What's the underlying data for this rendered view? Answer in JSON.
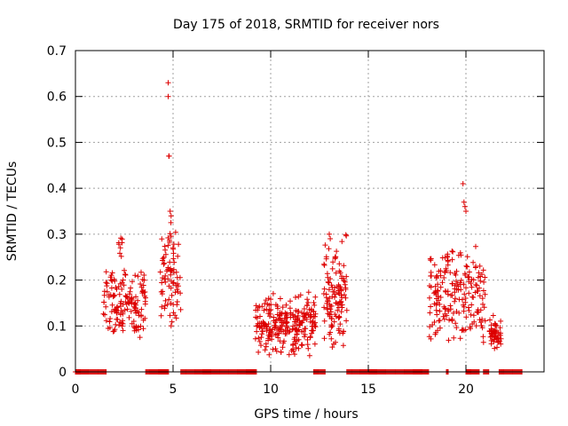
{
  "chart_data": {
    "type": "scatter",
    "title": "Day 175 of 2018, SRMTID for receiver nors",
    "xlabel": "GPS time / hours",
    "ylabel": "SRMTID / TECUs",
    "xlim": [
      0,
      24
    ],
    "ylim": [
      0,
      0.7
    ],
    "xticks": [
      0,
      5,
      10,
      15,
      20
    ],
    "yticks": [
      0,
      0.1,
      0.2,
      0.3,
      0.4,
      0.5,
      0.6,
      0.7
    ],
    "ytick_labels": [
      "0",
      "0.1",
      "0.2",
      "0.3",
      "0.4",
      "0.5",
      "0.6",
      "0.7"
    ],
    "grid": true,
    "marker": "+",
    "color": "#dd0000",
    "series": [
      {
        "name": "SRMTID",
        "clusters": [
          {
            "x_range": [
              1.4,
              3.6
            ],
            "y_range": [
              0.06,
              0.24
            ],
            "count": 150
          },
          {
            "x_range": [
              2.2,
              2.4
            ],
            "y_range": [
              0.24,
              0.31
            ],
            "count": 8
          },
          {
            "x_range": [
              4.3,
              5.4
            ],
            "y_range": [
              0.09,
              0.33
            ],
            "count": 80
          },
          {
            "x_range": [
              9.2,
              12.3
            ],
            "y_range": [
              0.03,
              0.18
            ],
            "count": 260
          },
          {
            "x_range": [
              12.7,
              13.9
            ],
            "y_range": [
              0.04,
              0.3
            ],
            "count": 120
          },
          {
            "x_range": [
              18.1,
              21.0
            ],
            "y_range": [
              0.05,
              0.29
            ],
            "count": 200
          },
          {
            "x_range": [
              21.2,
              21.8
            ],
            "y_range": [
              0.04,
              0.13
            ],
            "count": 50
          }
        ],
        "peaks": [
          {
            "x": 4.75,
            "y": 0.63
          },
          {
            "x": 4.75,
            "y": 0.6
          },
          {
            "x": 4.78,
            "y": 0.47
          },
          {
            "x": 4.8,
            "y": 0.47
          },
          {
            "x": 4.85,
            "y": 0.35
          },
          {
            "x": 4.9,
            "y": 0.34
          },
          {
            "x": 13.0,
            "y": 0.3
          },
          {
            "x": 13.05,
            "y": 0.29
          },
          {
            "x": 19.85,
            "y": 0.41
          },
          {
            "x": 19.9,
            "y": 0.37
          },
          {
            "x": 19.95,
            "y": 0.36
          },
          {
            "x": 20.0,
            "y": 0.35
          }
        ],
        "zero_segments": [
          [
            0.0,
            1.6
          ],
          [
            3.6,
            4.8
          ],
          [
            5.4,
            9.3
          ],
          [
            12.2,
            12.8
          ],
          [
            13.9,
            18.1
          ],
          [
            19.0,
            19.1
          ],
          [
            20.0,
            20.7
          ],
          [
            20.9,
            21.2
          ],
          [
            21.7,
            22.9
          ]
        ]
      }
    ]
  }
}
